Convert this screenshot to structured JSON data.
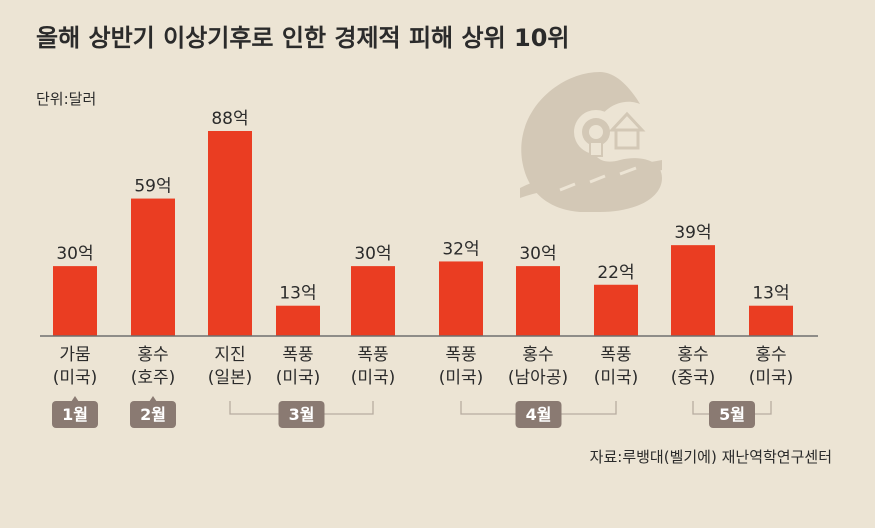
{
  "chart_data": {
    "type": "bar",
    "title": "올해 상반기 이상기후로 인한 경제적 피해 상위 10위",
    "unit_label": "단위:달러",
    "value_suffix": "억",
    "categories": [
      {
        "line1": "가뭄",
        "line2": "(미국)"
      },
      {
        "line1": "홍수",
        "line2": "(호주)"
      },
      {
        "line1": "지진",
        "line2": "(일본)"
      },
      {
        "line1": "폭풍",
        "line2": "(미국)"
      },
      {
        "line1": "폭풍",
        "line2": "(미국)"
      },
      {
        "line1": "폭풍",
        "line2": "(미국)"
      },
      {
        "line1": "홍수",
        "line2": "(남아공)"
      },
      {
        "line1": "폭풍",
        "line2": "(미국)"
      },
      {
        "line1": "홍수",
        "line2": "(중국)"
      },
      {
        "line1": "홍수",
        "line2": "(미국)"
      }
    ],
    "values": [
      30,
      59,
      88,
      13,
      30,
      32,
      30,
      22,
      39,
      13
    ],
    "value_labels": [
      "30억",
      "59억",
      "88억",
      "13억",
      "30억",
      "32억",
      "30억",
      "22억",
      "39억",
      "13억"
    ],
    "ylim": [
      0,
      88
    ],
    "bar_color": "#ea3d22",
    "month_groups": [
      {
        "label": "1월",
        "bars": [
          0
        ]
      },
      {
        "label": "2월",
        "bars": [
          1
        ]
      },
      {
        "label": "3월",
        "bars": [
          2,
          3,
          4
        ]
      },
      {
        "label": "4월",
        "bars": [
          5,
          6,
          7
        ]
      },
      {
        "label": "5월",
        "bars": [
          8,
          9
        ]
      }
    ],
    "source": "자료:루뱅대(벨기에) 재난역학연구센터"
  },
  "colors": {
    "background": "#ece4d4",
    "bar": "#ea3d22",
    "month_badge": "#8a7a72",
    "bracket": "#b7aca0",
    "baseline": "#6e6e6e",
    "illustration": "#d3c8b6"
  },
  "decoration": {
    "icon": "tsunami-wave-icon"
  }
}
